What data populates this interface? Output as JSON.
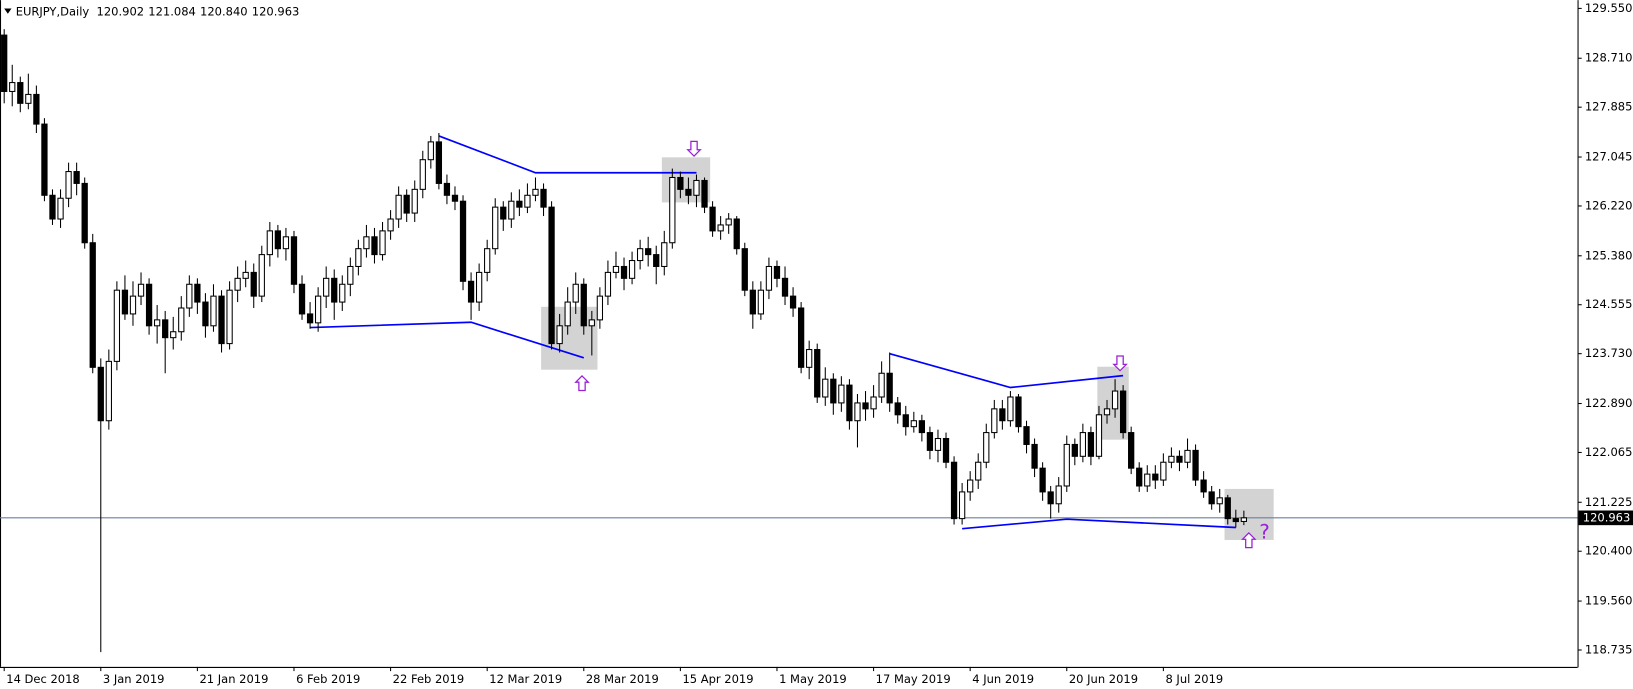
{
  "chart_data": {
    "type": "candlestick",
    "symbol": "EURJPY,Daily",
    "last_bar_labels": [
      "120.902",
      "121.084",
      "120.840",
      "120.963"
    ],
    "annotation": "?",
    "ylim": [
      118.45,
      129.69
    ],
    "yticks": [
      {
        "value": 129.55,
        "label": "129.550"
      },
      {
        "value": 128.71,
        "label": "128.710"
      },
      {
        "value": 127.885,
        "label": "127.885"
      },
      {
        "value": 127.045,
        "label": "127.045"
      },
      {
        "value": 126.22,
        "label": "126.220"
      },
      {
        "value": 125.38,
        "label": "125.380"
      },
      {
        "value": 124.555,
        "label": "124.555"
      },
      {
        "value": 123.73,
        "label": "123.730"
      },
      {
        "value": 122.89,
        "label": "122.890"
      },
      {
        "value": 122.065,
        "label": "122.065"
      },
      {
        "value": 121.225,
        "label": "121.225"
      },
      {
        "value": 120.4,
        "label": "120.400"
      },
      {
        "value": 119.56,
        "label": "119.560"
      },
      {
        "value": 118.735,
        "label": "118.735"
      }
    ],
    "up_color": "#ffffff",
    "down_color": "#000000",
    "price_line_color": "#6b7fa0",
    "categories": [
      "14 Dec 2018",
      null,
      null,
      null,
      null,
      null,
      null,
      null,
      null,
      null,
      null,
      null,
      "3 Jan 2019",
      null,
      null,
      null,
      null,
      null,
      null,
      null,
      null,
      null,
      null,
      null,
      "21 Jan 2019",
      null,
      null,
      null,
      null,
      null,
      null,
      null,
      null,
      null,
      null,
      null,
      "6 Feb 2019",
      null,
      null,
      null,
      null,
      null,
      null,
      null,
      null,
      null,
      null,
      null,
      "22 Feb 2019",
      null,
      null,
      null,
      null,
      null,
      null,
      null,
      null,
      null,
      null,
      null,
      "12 Mar 2019",
      null,
      null,
      null,
      null,
      null,
      null,
      null,
      null,
      null,
      null,
      null,
      "28 Mar 2019",
      null,
      null,
      null,
      null,
      null,
      null,
      null,
      null,
      null,
      null,
      null,
      "15 Apr 2019",
      null,
      null,
      null,
      null,
      null,
      null,
      null,
      null,
      null,
      null,
      null,
      "1 May 2019",
      null,
      null,
      null,
      null,
      null,
      null,
      null,
      null,
      null,
      null,
      null,
      "17 May 2019",
      null,
      null,
      null,
      null,
      null,
      null,
      null,
      null,
      null,
      null,
      null,
      "4 Jun 2019",
      null,
      null,
      null,
      null,
      null,
      null,
      null,
      null,
      null,
      null,
      null,
      "20 Jun 2019",
      null,
      null,
      null,
      null,
      null,
      null,
      null,
      null,
      null,
      null,
      null,
      "8 Jul 2019",
      null,
      null,
      null,
      null,
      null,
      null,
      null,
      null,
      null,
      null
    ],
    "candles": [
      [
        129.1,
        129.2,
        127.95,
        128.15
      ],
      [
        128.15,
        128.6,
        127.9,
        128.3
      ],
      [
        128.3,
        128.4,
        127.8,
        127.95
      ],
      [
        127.95,
        128.45,
        127.85,
        128.1
      ],
      [
        128.1,
        128.25,
        127.45,
        127.6
      ],
      [
        127.6,
        127.7,
        126.3,
        126.4
      ],
      [
        126.4,
        126.5,
        125.9,
        126.0
      ],
      [
        126.0,
        126.5,
        125.85,
        126.35
      ],
      [
        126.35,
        126.95,
        126.2,
        126.8
      ],
      [
        126.8,
        126.95,
        126.4,
        126.6
      ],
      [
        126.6,
        126.7,
        125.5,
        125.6
      ],
      [
        125.6,
        125.75,
        123.4,
        123.5
      ],
      [
        123.5,
        123.65,
        118.7,
        122.6
      ],
      [
        122.6,
        123.8,
        122.45,
        123.6
      ],
      [
        123.6,
        124.95,
        123.45,
        124.8
      ],
      [
        124.8,
        125.05,
        124.3,
        124.4
      ],
      [
        124.4,
        124.95,
        124.2,
        124.7
      ],
      [
        124.7,
        125.1,
        124.55,
        124.9
      ],
      [
        124.9,
        125.0,
        124.05,
        124.2
      ],
      [
        124.2,
        124.55,
        123.9,
        124.3
      ],
      [
        124.3,
        124.45,
        123.4,
        124.0
      ],
      [
        124.0,
        124.35,
        123.8,
        124.1
      ],
      [
        124.1,
        124.7,
        123.95,
        124.5
      ],
      [
        124.5,
        125.05,
        124.35,
        124.9
      ],
      [
        124.9,
        125.0,
        124.4,
        124.6
      ],
      [
        124.6,
        124.75,
        124.0,
        124.2
      ],
      [
        124.2,
        124.9,
        124.1,
        124.7
      ],
      [
        124.7,
        124.8,
        123.75,
        123.9
      ],
      [
        123.9,
        124.95,
        123.8,
        124.8
      ],
      [
        124.8,
        125.2,
        124.6,
        125.0
      ],
      [
        125.0,
        125.3,
        124.85,
        125.1
      ],
      [
        125.1,
        125.25,
        124.5,
        124.7
      ],
      [
        124.7,
        125.55,
        124.6,
        125.4
      ],
      [
        125.4,
        125.95,
        125.2,
        125.8
      ],
      [
        125.8,
        125.9,
        125.35,
        125.5
      ],
      [
        125.5,
        125.85,
        125.3,
        125.7
      ],
      [
        125.7,
        125.8,
        124.75,
        124.9
      ],
      [
        124.9,
        125.05,
        124.3,
        124.4
      ],
      [
        124.4,
        124.6,
        124.15,
        124.25
      ],
      [
        124.25,
        124.85,
        124.1,
        124.7
      ],
      [
        124.7,
        125.2,
        124.5,
        125.0
      ],
      [
        125.0,
        125.15,
        124.3,
        124.6
      ],
      [
        124.6,
        125.05,
        124.45,
        124.9
      ],
      [
        124.9,
        125.35,
        124.7,
        125.2
      ],
      [
        125.2,
        125.65,
        125.05,
        125.5
      ],
      [
        125.5,
        125.9,
        125.35,
        125.7
      ],
      [
        125.7,
        125.85,
        125.25,
        125.4
      ],
      [
        125.4,
        125.95,
        125.3,
        125.8
      ],
      [
        125.8,
        126.15,
        125.65,
        126.0
      ],
      [
        126.0,
        126.55,
        125.85,
        126.4
      ],
      [
        126.4,
        126.5,
        125.95,
        126.1
      ],
      [
        126.1,
        126.65,
        125.95,
        126.5
      ],
      [
        126.5,
        127.15,
        126.35,
        127.0
      ],
      [
        127.0,
        127.4,
        126.85,
        127.3
      ],
      [
        127.3,
        127.45,
        126.5,
        126.6
      ],
      [
        126.6,
        126.75,
        126.25,
        126.4
      ],
      [
        126.4,
        126.55,
        126.15,
        126.3
      ],
      [
        126.3,
        126.4,
        124.8,
        124.95
      ],
      [
        124.95,
        125.1,
        124.3,
        124.6
      ],
      [
        124.6,
        125.25,
        124.45,
        125.1
      ],
      [
        125.1,
        125.65,
        124.95,
        125.5
      ],
      [
        125.5,
        126.35,
        125.4,
        126.2
      ],
      [
        126.2,
        126.3,
        125.8,
        126.0
      ],
      [
        126.0,
        126.45,
        125.85,
        126.3
      ],
      [
        126.3,
        126.5,
        126.05,
        126.2
      ],
      [
        126.2,
        126.6,
        126.1,
        126.4
      ],
      [
        126.4,
        126.7,
        126.3,
        126.5
      ],
      [
        126.5,
        126.6,
        126.05,
        126.2
      ],
      [
        126.2,
        126.3,
        123.8,
        123.9
      ],
      [
        123.9,
        124.4,
        123.75,
        124.2
      ],
      [
        124.2,
        124.85,
        124.05,
        124.6
      ],
      [
        124.6,
        125.1,
        124.4,
        124.9
      ],
      [
        124.9,
        125.0,
        124.05,
        124.2
      ],
      [
        124.2,
        124.45,
        123.7,
        124.3
      ],
      [
        124.3,
        124.85,
        124.15,
        124.7
      ],
      [
        124.7,
        125.3,
        124.55,
        125.1
      ],
      [
        125.1,
        125.45,
        125.0,
        125.2
      ],
      [
        125.2,
        125.35,
        124.8,
        125.0
      ],
      [
        125.0,
        125.45,
        124.9,
        125.3
      ],
      [
        125.3,
        125.65,
        125.15,
        125.5
      ],
      [
        125.5,
        125.7,
        125.2,
        125.4
      ],
      [
        125.4,
        125.55,
        124.9,
        125.2
      ],
      [
        125.2,
        125.8,
        125.05,
        125.6
      ],
      [
        125.6,
        126.85,
        125.5,
        126.7
      ],
      [
        126.7,
        126.8,
        126.35,
        126.5
      ],
      [
        126.5,
        126.7,
        126.25,
        126.4
      ],
      [
        126.4,
        126.75,
        126.2,
        126.65
      ],
      [
        126.65,
        126.7,
        126.1,
        126.2
      ],
      [
        126.2,
        126.3,
        125.7,
        125.8
      ],
      [
        125.8,
        126.05,
        125.65,
        125.9
      ],
      [
        125.9,
        126.1,
        125.75,
        126.0
      ],
      [
        126.0,
        126.05,
        125.4,
        125.5
      ],
      [
        125.5,
        125.6,
        124.7,
        124.8
      ],
      [
        124.8,
        124.95,
        124.15,
        124.4
      ],
      [
        124.4,
        124.95,
        124.3,
        124.8
      ],
      [
        124.8,
        125.35,
        124.65,
        125.2
      ],
      [
        125.2,
        125.3,
        124.85,
        125.0
      ],
      [
        125.0,
        125.2,
        124.55,
        124.7
      ],
      [
        124.7,
        124.85,
        124.35,
        124.5
      ],
      [
        124.5,
        124.6,
        123.4,
        123.5
      ],
      [
        123.5,
        123.95,
        123.3,
        123.8
      ],
      [
        123.8,
        123.9,
        122.9,
        123.0
      ],
      [
        123.0,
        123.5,
        122.85,
        123.3
      ],
      [
        123.3,
        123.4,
        122.7,
        122.9
      ],
      [
        122.9,
        123.35,
        122.75,
        123.2
      ],
      [
        123.2,
        123.3,
        122.45,
        122.6
      ],
      [
        122.6,
        123.05,
        122.15,
        122.9
      ],
      [
        122.9,
        123.1,
        122.6,
        122.8
      ],
      [
        122.8,
        123.2,
        122.65,
        123.0
      ],
      [
        123.0,
        123.6,
        122.9,
        123.4
      ],
      [
        123.4,
        123.75,
        122.75,
        122.9
      ],
      [
        122.9,
        123.0,
        122.55,
        122.7
      ],
      [
        122.7,
        122.85,
        122.35,
        122.5
      ],
      [
        122.5,
        122.75,
        122.4,
        122.6
      ],
      [
        122.6,
        122.7,
        122.25,
        122.4
      ],
      [
        122.4,
        122.5,
        121.95,
        122.1
      ],
      [
        122.1,
        122.45,
        121.9,
        122.3
      ],
      [
        122.3,
        122.4,
        121.8,
        121.9
      ],
      [
        121.9,
        122.0,
        120.85,
        120.95
      ],
      [
        120.95,
        121.55,
        120.85,
        121.4
      ],
      [
        121.4,
        121.75,
        121.25,
        121.6
      ],
      [
        121.6,
        122.05,
        121.45,
        121.9
      ],
      [
        121.9,
        122.55,
        121.8,
        122.4
      ],
      [
        122.4,
        122.95,
        122.3,
        122.8
      ],
      [
        122.8,
        122.95,
        122.45,
        122.6
      ],
      [
        122.6,
        123.1,
        122.5,
        123.0
      ],
      [
        123.0,
        123.05,
        122.4,
        122.5
      ],
      [
        122.5,
        122.6,
        122.05,
        122.2
      ],
      [
        122.2,
        122.3,
        121.65,
        121.8
      ],
      [
        121.8,
        121.9,
        121.25,
        121.4
      ],
      [
        121.4,
        121.5,
        120.95,
        121.2
      ],
      [
        121.2,
        121.65,
        121.05,
        121.5
      ],
      [
        121.5,
        122.35,
        121.4,
        122.2
      ],
      [
        122.2,
        122.3,
        121.85,
        122.0
      ],
      [
        122.0,
        122.55,
        121.9,
        122.4
      ],
      [
        122.4,
        122.5,
        121.85,
        122.0
      ],
      [
        122.0,
        122.85,
        121.95,
        122.7
      ],
      [
        122.7,
        122.95,
        122.55,
        122.8
      ],
      [
        122.8,
        123.3,
        122.65,
        123.1
      ],
      [
        123.1,
        123.2,
        122.3,
        122.4
      ],
      [
        122.4,
        122.5,
        121.7,
        121.8
      ],
      [
        121.8,
        121.9,
        121.4,
        121.5
      ],
      [
        121.5,
        121.85,
        121.4,
        121.7
      ],
      [
        121.7,
        121.85,
        121.45,
        121.6
      ],
      [
        121.6,
        122.05,
        121.5,
        121.9
      ],
      [
        121.9,
        122.15,
        121.8,
        122.0
      ],
      [
        122.0,
        122.1,
        121.75,
        121.9
      ],
      [
        121.9,
        122.3,
        121.8,
        122.1
      ],
      [
        122.1,
        122.2,
        121.5,
        121.6
      ],
      [
        121.6,
        121.75,
        121.3,
        121.4
      ],
      [
        121.4,
        121.5,
        121.1,
        121.2
      ],
      [
        121.2,
        121.45,
        121.05,
        121.3
      ],
      [
        121.3,
        121.35,
        120.85,
        120.95
      ],
      [
        120.95,
        121.1,
        120.8,
        120.9
      ],
      [
        120.902,
        121.084,
        120.84,
        120.963
      ]
    ],
    "trend_lines": [
      {
        "color": "#0000ff",
        "x": [
          54,
          66,
          86
        ],
        "y": [
          127.4,
          126.78,
          126.78
        ]
      },
      {
        "color": "#0000ff",
        "x": [
          38,
          58,
          72
        ],
        "y": [
          124.17,
          124.26,
          123.66
        ]
      },
      {
        "color": "#0000ff",
        "x": [
          110,
          125,
          139
        ],
        "y": [
          123.73,
          123.16,
          123.36
        ]
      },
      {
        "color": "#0000ff",
        "x": [
          119,
          132,
          153
        ],
        "y": [
          120.78,
          120.94,
          120.8
        ]
      }
    ],
    "highlight_boxes": [
      {
        "color": "#d3d3d3",
        "x": [
          81.7,
          87.7
        ],
        "y": [
          126.28,
          127.04
        ]
      },
      {
        "color": "#d3d3d3",
        "x": [
          66.7,
          73.7
        ],
        "y": [
          123.46,
          124.52
        ]
      },
      {
        "color": "#d3d3d3",
        "x": [
          135.8,
          139.7
        ],
        "y": [
          122.28,
          123.51
        ]
      },
      {
        "color": "#d3d3d3",
        "x": [
          151.6,
          157.7
        ],
        "y": [
          120.59,
          121.45
        ]
      }
    ]
  }
}
